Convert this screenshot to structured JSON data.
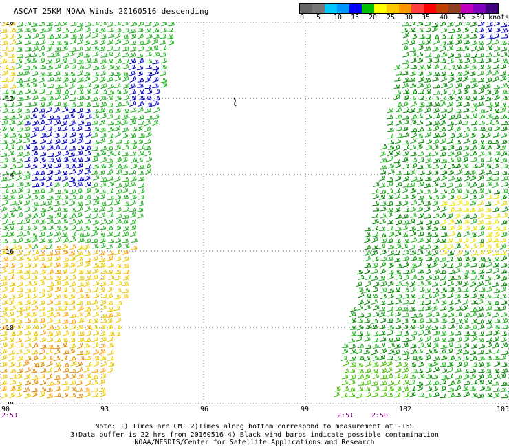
{
  "title": "ASCAT 25KM NOAA Winds 20160516 descending",
  "colorbar": {
    "colors": [
      "#666666",
      "#777777",
      "#00c8ff",
      "#0096ff",
      "#0000ff",
      "#00c000",
      "#ffff00",
      "#ffc800",
      "#ff9600",
      "#ff4040",
      "#ff0000",
      "#c04000",
      "#904020",
      "#c000c0",
      "#8000c0",
      "#400080"
    ],
    "labels": [
      "0",
      "5",
      "10",
      "15",
      "20",
      "25",
      "30",
      "35",
      "40",
      "45",
      ">50 knots"
    ]
  },
  "map": {
    "lon_range": [
      90,
      105
    ],
    "lat_range": [
      -20,
      -10
    ],
    "xticks": [
      "90",
      "93",
      "96",
      "99",
      "102",
      "105"
    ],
    "yticks": [
      "-10",
      "-12",
      "-14",
      "-16",
      "-18",
      "-20"
    ],
    "time_labels": [
      "2:51",
      "2:51",
      "2:50"
    ]
  },
  "notes": [
    "Note: 1) Times are GMT 2)Times along bottom correspond to measurement at -15S",
    "3)Data buffer is 22 hrs from 20160516 4) Black wind barbs indicate possible contamination",
    "NOAA/NESDIS/Center for Satellite Applications and Research"
  ]
}
